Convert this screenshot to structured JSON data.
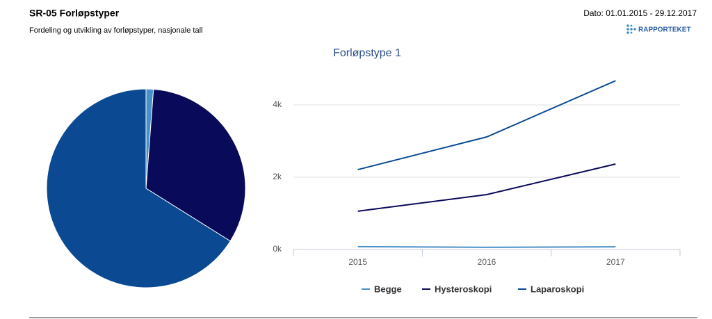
{
  "header": {
    "title": "SR-05 Forløpstyper",
    "subtitle": "Fordeling og utvikling av forløpstyper,  nasjonale tall",
    "date": "Dato: 01.01.2015 - 29.12.2017",
    "logo": "RAPPORTEKET"
  },
  "chart_data": [
    {
      "type": "pie",
      "values": [
        1.2,
        32.7,
        66.1
      ],
      "colors": [
        "#4a90c8",
        "#0a0a5a",
        "#0b4a92"
      ]
    },
    {
      "type": "line",
      "title": "Forløpstype 1",
      "categories": [
        "2015",
        "2016",
        "2017"
      ],
      "series": [
        {
          "name": "Begge",
          "color": "#4a90c8",
          "values": [
            80,
            60,
            75
          ]
        },
        {
          "name": "Hysteroskopi",
          "color": "#0a0a5a",
          "values": [
            1060,
            1520,
            2365
          ]
        },
        {
          "name": "Laparoskopi",
          "color": "#0b4a92",
          "values": [
            2210,
            3115,
            4670
          ]
        }
      ],
      "ylim": [
        0,
        5000
      ],
      "yticks": [
        {
          "value": 0,
          "label": "0k"
        },
        {
          "value": 2000,
          "label": "2k"
        },
        {
          "value": 4000,
          "label": "4k"
        }
      ],
      "grid": true,
      "legend": "bottom"
    }
  ]
}
